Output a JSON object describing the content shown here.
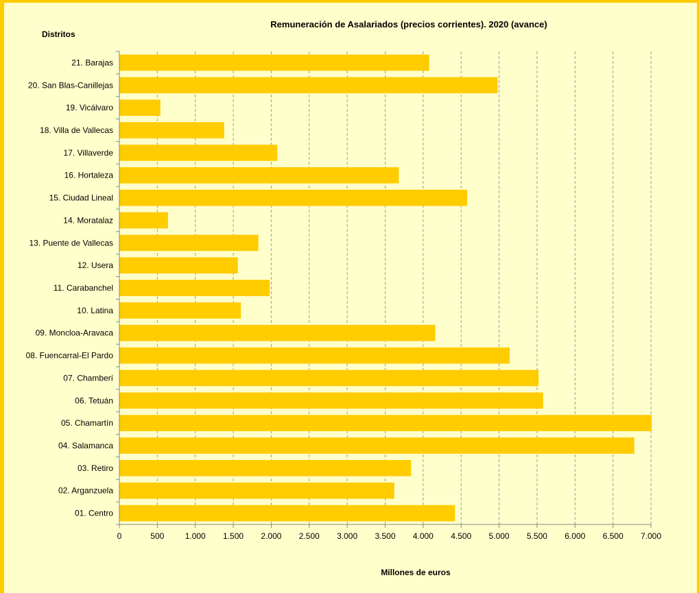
{
  "chart_data": {
    "type": "bar",
    "orientation": "horizontal",
    "title": "Remuneración de Asalariados  (precios corrientes).  2020 (avance)",
    "ylabel": "Distritos",
    "xlabel": "Millones de euros",
    "xlim": [
      0,
      7000
    ],
    "xticks": [
      "0",
      "500",
      "1.000",
      "1.500",
      "2.000",
      "2.500",
      "3.000",
      "3.500",
      "4.000",
      "4.500",
      "5.000",
      "5.500",
      "6.000",
      "6.500",
      "7.000"
    ],
    "grid": "vertical dashed",
    "bar_color": "#ffcc00",
    "categories": [
      "21. Barajas",
      "20. San Blas-Canillejas",
      "19. Vicálvaro",
      "18. Villa de Vallecas",
      "17. Villaverde",
      "16. Hortaleza",
      "15. Ciudad Lineal",
      "14. Moratalaz",
      "13. Puente de Vallecas",
      "12. Usera",
      "11. Carabanchel",
      "10. Latina",
      "09. Moncloa-Aravaca",
      "08. Fuencarral-El Pardo",
      "07. Chamberí",
      "06. Tetuán",
      "05. Chamartín",
      "04. Salamanca",
      "03. Retiro",
      "02. Arganzuela",
      "01. Centro"
    ],
    "values": [
      4080,
      4980,
      540,
      1380,
      2080,
      3680,
      4580,
      640,
      1830,
      1560,
      1980,
      1600,
      4160,
      5140,
      5520,
      5580,
      7010,
      6780,
      3840,
      3620,
      4420
    ]
  }
}
